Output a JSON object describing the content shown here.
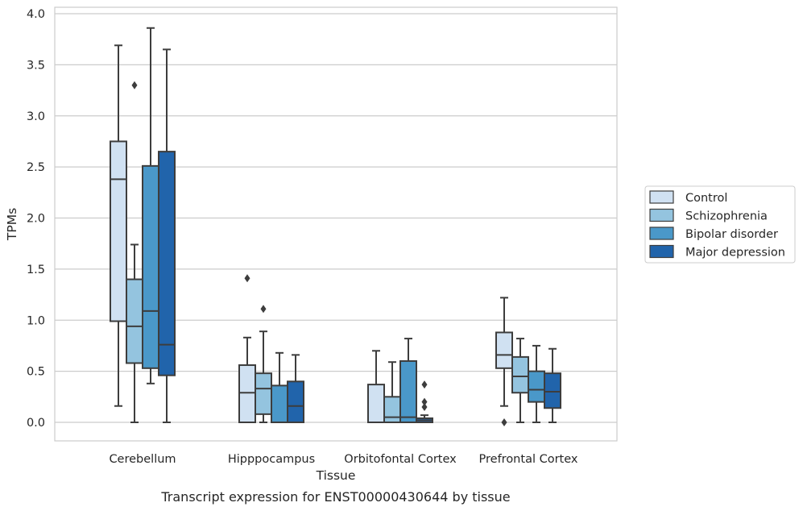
{
  "chart_data": {
    "type": "box",
    "caption": "Transcript expression for ENST00000430644 by tissue",
    "xlabel": "Tissue",
    "ylabel": "TPMs",
    "ylim": [
      -0.18,
      4.05
    ],
    "yticks": [
      "0.0",
      "0.5",
      "1.0",
      "1.5",
      "2.0",
      "2.5",
      "3.0",
      "3.5",
      "4.0"
    ],
    "categories": [
      "Cerebellum",
      "Hipppocampus",
      "Orbitofontal Cortex",
      "Prefrontal Cortex"
    ],
    "grid": "horizontal",
    "legend_position": "right",
    "series": [
      {
        "name": "Control",
        "color": "#d0e1f2",
        "boxes": [
          {
            "whisker_low": 0.16,
            "q1": 0.99,
            "median": 2.38,
            "q3": 2.75,
            "whisker_high": 3.69,
            "outliers": []
          },
          {
            "whisker_low": 0.0,
            "q1": 0.0,
            "median": 0.29,
            "q3": 0.56,
            "whisker_high": 0.83,
            "outliers": [
              1.41
            ]
          },
          {
            "whisker_low": 0.0,
            "q1": 0.0,
            "median": 0.0,
            "q3": 0.37,
            "whisker_high": 0.7,
            "outliers": []
          },
          {
            "whisker_low": 0.16,
            "q1": 0.53,
            "median": 0.66,
            "q3": 0.88,
            "whisker_high": 1.22,
            "outliers": [
              0.0
            ]
          }
        ]
      },
      {
        "name": "Schizophrenia",
        "color": "#94c4df",
        "boxes": [
          {
            "whisker_low": 0.0,
            "q1": 0.58,
            "median": 0.94,
            "q3": 1.4,
            "whisker_high": 1.74,
            "outliers": [
              3.3
            ]
          },
          {
            "whisker_low": 0.0,
            "q1": 0.08,
            "median": 0.33,
            "q3": 0.48,
            "whisker_high": 0.89,
            "outliers": [
              1.11
            ]
          },
          {
            "whisker_low": 0.0,
            "q1": 0.0,
            "median": 0.05,
            "q3": 0.25,
            "whisker_high": 0.59,
            "outliers": []
          },
          {
            "whisker_low": 0.0,
            "q1": 0.29,
            "median": 0.45,
            "q3": 0.64,
            "whisker_high": 0.82,
            "outliers": []
          }
        ]
      },
      {
        "name": "Bipolar disorder",
        "color": "#4a98c9",
        "boxes": [
          {
            "whisker_low": 0.38,
            "q1": 0.53,
            "median": 1.09,
            "q3": 2.51,
            "whisker_high": 3.86,
            "outliers": []
          },
          {
            "whisker_low": 0.0,
            "q1": 0.0,
            "median": 0.0,
            "q3": 0.36,
            "whisker_high": 0.68,
            "outliers": []
          },
          {
            "whisker_low": 0.0,
            "q1": 0.0,
            "median": 0.05,
            "q3": 0.6,
            "whisker_high": 0.82,
            "outliers": []
          },
          {
            "whisker_low": 0.0,
            "q1": 0.2,
            "median": 0.32,
            "q3": 0.5,
            "whisker_high": 0.75,
            "outliers": []
          }
        ]
      },
      {
        "name": "Major depression",
        "color": "#2164ab",
        "boxes": [
          {
            "whisker_low": 0.0,
            "q1": 0.46,
            "median": 0.76,
            "q3": 2.65,
            "whisker_high": 3.65,
            "outliers": []
          },
          {
            "whisker_low": 0.0,
            "q1": 0.0,
            "median": 0.16,
            "q3": 0.4,
            "whisker_high": 0.66,
            "outliers": []
          },
          {
            "whisker_low": 0.0,
            "q1": 0.0,
            "median": 0.02,
            "q3": 0.04,
            "whisker_high": 0.07,
            "outliers": [
              0.15,
              0.2,
              0.37
            ]
          },
          {
            "whisker_low": 0.0,
            "q1": 0.14,
            "median": 0.3,
            "q3": 0.48,
            "whisker_high": 0.72,
            "outliers": []
          }
        ]
      }
    ]
  }
}
